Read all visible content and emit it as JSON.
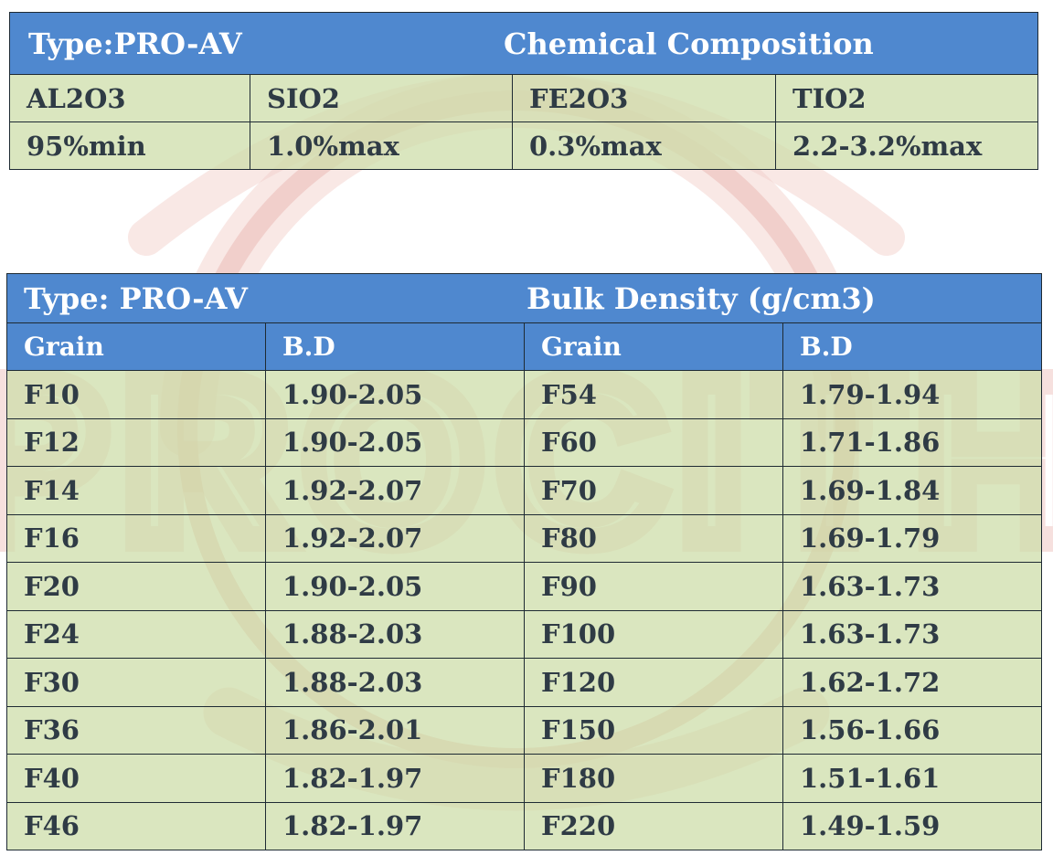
{
  "watermark": {
    "text": "PROCITH",
    "color": "#e7a9a2"
  },
  "colors": {
    "header_blue": "#4f88cf",
    "cell_green": "#d6e2b8",
    "text_dark": "#2f3b45"
  },
  "chemical_table": {
    "type_label": "Type:PRO-AV",
    "title": "Chemical Composition",
    "components": [
      "AL2O3",
      "SIO2",
      "FE2O3",
      "TIO2"
    ],
    "values": [
      "95%min",
      "1.0%max",
      "0.3%max",
      "2.2-3.2%max"
    ]
  },
  "bulk_table": {
    "type_label": "Type: PRO-AV",
    "title": "Bulk Density (g/cm3)",
    "col_grain": "Grain",
    "col_bd": "B.D",
    "rows": [
      {
        "grain_l": "F10",
        "bd_l": "1.90-2.05",
        "grain_r": "F54",
        "bd_r": "1.79-1.94"
      },
      {
        "grain_l": "F12",
        "bd_l": "1.90-2.05",
        "grain_r": "F60",
        "bd_r": "1.71-1.86"
      },
      {
        "grain_l": "F14",
        "bd_l": "1.92-2.07",
        "grain_r": "F70",
        "bd_r": "1.69-1.84"
      },
      {
        "grain_l": "F16",
        "bd_l": "1.92-2.07",
        "grain_r": "F80",
        "bd_r": "1.69-1.79"
      },
      {
        "grain_l": "F20",
        "bd_l": "1.90-2.05",
        "grain_r": "F90",
        "bd_r": "1.63-1.73"
      },
      {
        "grain_l": "F24",
        "bd_l": "1.88-2.03",
        "grain_r": "F100",
        "bd_r": "1.63-1.73"
      },
      {
        "grain_l": "F30",
        "bd_l": "1.88-2.03",
        "grain_r": "F120",
        "bd_r": "1.62-1.72"
      },
      {
        "grain_l": "F36",
        "bd_l": "1.86-2.01",
        "grain_r": "F150",
        "bd_r": "1.56-1.66"
      },
      {
        "grain_l": "F40",
        "bd_l": "1.82-1.97",
        "grain_r": "F180",
        "bd_r": "1.51-1.61"
      },
      {
        "grain_l": "F46",
        "bd_l": "1.82-1.97",
        "grain_r": "F220",
        "bd_r": "1.49-1.59"
      }
    ]
  }
}
